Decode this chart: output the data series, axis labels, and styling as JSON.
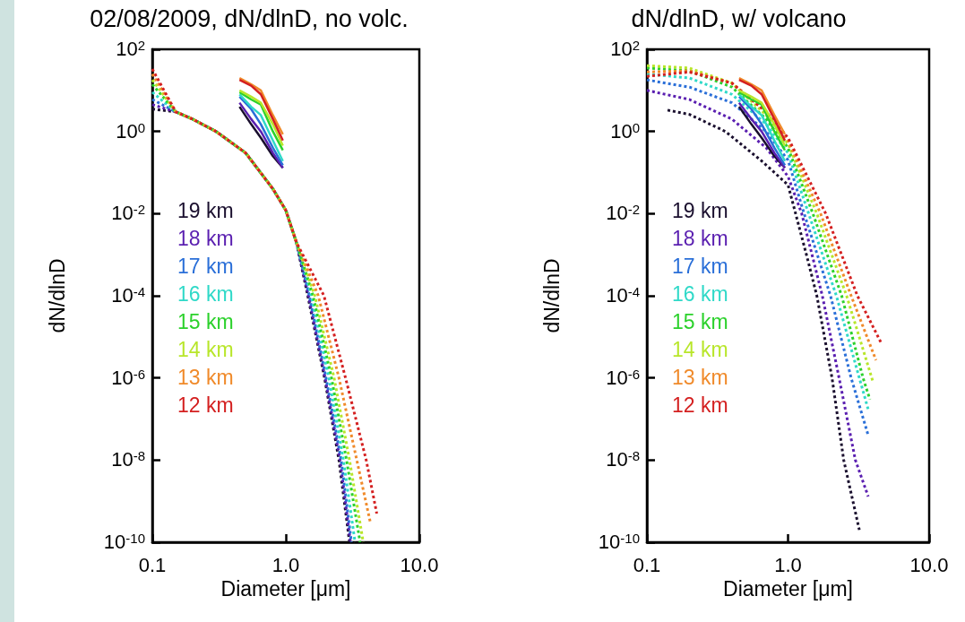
{
  "chart_data": [
    {
      "type": "line",
      "title": "02/08/2009, dN/dlnD, no volc.",
      "xlabel": "Diameter [μm]",
      "ylabel": "dN/dlnD",
      "log": "xy",
      "grid": false,
      "legend": "left",
      "marker": "none",
      "xlim": [
        0.1,
        10
      ],
      "xticks": [
        {
          "value": 0.1,
          "label": "0.1"
        },
        {
          "value": 1,
          "label": "1.0"
        },
        {
          "value": 10,
          "label": "10.0"
        }
      ],
      "ylim": [
        1e-10,
        100
      ],
      "yticks": [
        {
          "value": 100,
          "label": "10$^{2}$"
        },
        {
          "value": 1,
          "label": "10$^{0}$"
        },
        {
          "value": 0.01,
          "label": "10$^{-2}$"
        },
        {
          "value": 0.0001,
          "label": "10$^{-4}$"
        },
        {
          "value": 1e-06,
          "label": "10$^{-6}$"
        },
        {
          "value": 1e-08,
          "label": "10$^{-8}$"
        },
        {
          "value": 1e-10,
          "label": "10$^{-10}$"
        }
      ],
      "series": [
        {
          "name": "19 km",
          "color": "#1a0f2e",
          "x": [
            0.45,
            0.55,
            0.65,
            0.8,
            0.95
          ],
          "values": [
            4,
            1.5,
            0.7,
            0.25,
            0.13
          ]
        },
        {
          "name": "18 km",
          "color": "#5a1fb0",
          "x": [
            0.45,
            0.55,
            0.65,
            0.8,
            0.95
          ],
          "values": [
            5,
            2,
            1,
            0.3,
            0.13
          ]
        },
        {
          "name": "17 km",
          "color": "#2a6fd8",
          "x": [
            0.45,
            0.55,
            0.65,
            0.8,
            0.95
          ],
          "values": [
            7,
            3.5,
            1.5,
            0.4,
            0.15
          ]
        },
        {
          "name": "16 km",
          "color": "#2fd9c8",
          "x": [
            0.45,
            0.55,
            0.65,
            0.8,
            0.95
          ],
          "values": [
            8,
            4,
            2.5,
            0.6,
            0.19
          ]
        },
        {
          "name": "15 km",
          "color": "#2bd12b",
          "x": [
            0.45,
            0.55,
            0.65,
            0.8,
            0.95
          ],
          "values": [
            9,
            6,
            4.5,
            1,
            0.35
          ]
        },
        {
          "name": "14 km",
          "color": "#b8e62a",
          "x": [
            0.45,
            0.55,
            0.65,
            0.8,
            0.95
          ],
          "values": [
            10,
            7,
            5,
            1.5,
            0.45
          ]
        },
        {
          "name": "13 km",
          "color": "#f08a2a",
          "x": [
            0.45,
            0.55,
            0.65,
            0.8,
            0.95
          ],
          "values": [
            20,
            14,
            10,
            2.5,
            0.85
          ]
        },
        {
          "name": "12 km",
          "color": "#d42020",
          "x": [
            0.45,
            0.55,
            0.65,
            0.8,
            0.95
          ],
          "values": [
            18,
            13,
            8,
            2,
            0.6
          ]
        },
        {
          "color": "#1a0f2e",
          "line_style": "dotted",
          "x": [
            0.1,
            0.15,
            0.2,
            0.3,
            0.5,
            0.8,
            1.0,
            1.2,
            1.46,
            1.95,
            2.5,
            3.0
          ],
          "values": [
            3.5,
            3,
            2,
            1,
            0.3,
            0.04,
            0.012,
            0.002,
            0.0001,
            1e-06,
            1e-08,
            1e-10
          ]
        },
        {
          "color": "#5a1fb0",
          "line_style": "dotted",
          "x": [
            0.1,
            0.15,
            0.2,
            0.3,
            0.5,
            0.8,
            1.0,
            1.2,
            1.48,
            1.97,
            2.55,
            3.05
          ],
          "values": [
            4.5,
            3,
            2,
            1,
            0.3,
            0.04,
            0.012,
            0.002,
            0.0001,
            1e-06,
            1e-08,
            1e-10
          ]
        },
        {
          "color": "#2a6fd8",
          "line_style": "dotted",
          "x": [
            0.1,
            0.15,
            0.2,
            0.3,
            0.5,
            0.8,
            1.0,
            1.2,
            1.5,
            2.0,
            2.6,
            3.1
          ],
          "values": [
            6,
            3,
            2,
            1,
            0.3,
            0.04,
            0.012,
            0.002,
            0.0001,
            1e-06,
            1e-08,
            1e-10
          ]
        },
        {
          "color": "#2fd9c8",
          "line_style": "dotted",
          "x": [
            0.1,
            0.15,
            0.2,
            0.3,
            0.5,
            0.8,
            1.0,
            1.2,
            1.55,
            2.1,
            2.7,
            3.3
          ],
          "values": [
            9,
            3,
            2,
            1,
            0.3,
            0.04,
            0.012,
            0.002,
            0.0001,
            1e-06,
            1e-08,
            1e-10
          ]
        },
        {
          "color": "#2bd12b",
          "line_style": "dotted",
          "x": [
            0.1,
            0.15,
            0.2,
            0.3,
            0.5,
            0.8,
            1.0,
            1.2,
            1.6,
            2.2,
            2.85,
            3.6
          ],
          "values": [
            14,
            3,
            2,
            1,
            0.3,
            0.04,
            0.012,
            0.002,
            0.0001,
            1e-06,
            1e-08,
            1e-10
          ]
        },
        {
          "color": "#b8e62a",
          "line_style": "dotted",
          "x": [
            0.1,
            0.15,
            0.2,
            0.3,
            0.5,
            0.8,
            1.0,
            1.2,
            1.65,
            2.3,
            3.0,
            3.8
          ],
          "values": [
            18,
            3,
            2,
            1,
            0.3,
            0.04,
            0.012,
            0.002,
            0.0001,
            1e-06,
            1e-08,
            1e-10
          ]
        },
        {
          "color": "#f08a2a",
          "line_style": "dotted",
          "x": [
            0.1,
            0.15,
            0.2,
            0.3,
            0.5,
            0.8,
            1.0,
            1.2,
            1.75,
            2.5,
            3.4,
            4.3
          ],
          "values": [
            25,
            3,
            2,
            1,
            0.3,
            0.04,
            0.012,
            0.002,
            0.0001,
            1e-06,
            1e-08,
            3e-10
          ]
        },
        {
          "color": "#d42020",
          "line_style": "dotted",
          "x": [
            0.1,
            0.15,
            0.2,
            0.3,
            0.5,
            0.8,
            1.0,
            1.2,
            1.93,
            2.8,
            4.0,
            4.8
          ],
          "values": [
            33,
            3,
            2,
            1,
            0.3,
            0.04,
            0.012,
            0.002,
            0.0001,
            1e-06,
            1e-08,
            5e-10
          ]
        }
      ]
    },
    {
      "type": "line",
      "title": "dN/dlnD, w/ volcano",
      "xlabel": "Diameter [μm]",
      "ylabel": "dN/dlnD",
      "log": "xy",
      "grid": false,
      "legend": "left",
      "marker": "none",
      "xlim": [
        0.1,
        10
      ],
      "xticks": [
        {
          "value": 0.1,
          "label": "0.1"
        },
        {
          "value": 1,
          "label": "1.0"
        },
        {
          "value": 10,
          "label": "10.0"
        }
      ],
      "ylim": [
        1e-10,
        100
      ],
      "yticks": [
        {
          "value": 100,
          "label": "10$^{2}$"
        },
        {
          "value": 1,
          "label": "10$^{0}$"
        },
        {
          "value": 0.01,
          "label": "10$^{-2}$"
        },
        {
          "value": 0.0001,
          "label": "10$^{-4}$"
        },
        {
          "value": 1e-06,
          "label": "10$^{-6}$"
        },
        {
          "value": 1e-08,
          "label": "10$^{-8}$"
        },
        {
          "value": 1e-10,
          "label": "10$^{-10}$"
        }
      ],
      "series": [
        {
          "name": "19 km",
          "color": "#1a0f2e",
          "x": [
            0.45,
            0.55,
            0.65,
            0.8,
            0.95
          ],
          "values": [
            4,
            1.5,
            0.7,
            0.25,
            0.13
          ]
        },
        {
          "name": "18 km",
          "color": "#5a1fb0",
          "x": [
            0.45,
            0.55,
            0.65,
            0.8,
            0.95
          ],
          "values": [
            5,
            2,
            1,
            0.3,
            0.13
          ]
        },
        {
          "name": "17 km",
          "color": "#2a6fd8",
          "x": [
            0.45,
            0.55,
            0.65,
            0.8,
            0.95
          ],
          "values": [
            7,
            3.5,
            1.5,
            0.4,
            0.15
          ]
        },
        {
          "name": "16 km",
          "color": "#2fd9c8",
          "x": [
            0.45,
            0.55,
            0.65,
            0.8,
            0.95
          ],
          "values": [
            8,
            4,
            2.5,
            0.6,
            0.19
          ]
        },
        {
          "name": "15 km",
          "color": "#2bd12b",
          "x": [
            0.45,
            0.55,
            0.65,
            0.8,
            0.95
          ],
          "values": [
            9,
            6,
            4.5,
            1,
            0.35
          ]
        },
        {
          "name": "14 km",
          "color": "#b8e62a",
          "x": [
            0.45,
            0.55,
            0.65,
            0.8,
            0.95
          ],
          "values": [
            10,
            7,
            5,
            1.5,
            0.45
          ]
        },
        {
          "name": "13 km",
          "color": "#f08a2a",
          "x": [
            0.45,
            0.55,
            0.65,
            0.8,
            0.95
          ],
          "values": [
            20,
            14,
            10,
            2.5,
            0.85
          ]
        },
        {
          "name": "12 km",
          "color": "#d42020",
          "x": [
            0.45,
            0.55,
            0.65,
            0.8,
            0.95
          ],
          "values": [
            18,
            13,
            8,
            2,
            0.6
          ]
        },
        {
          "color": "#1a0f2e",
          "line_style": "dotted",
          "x": [
            0.14,
            0.2,
            0.36,
            0.64,
            1.0,
            1.35,
            1.6,
            2.05,
            2.48,
            3.2
          ],
          "values": [
            3.3,
            2.6,
            1,
            0.2,
            0.05,
            0.001,
            0.0001,
            1e-06,
            1e-08,
            2e-10
          ]
        },
        {
          "color": "#5a1fb0",
          "line_style": "dotted",
          "x": [
            0.1,
            0.2,
            0.4,
            0.7,
            1.0,
            1.25,
            1.75,
            2.3,
            3.0,
            3.7
          ],
          "values": [
            10,
            6,
            2,
            0.4,
            0.08,
            0.01,
            0.0001,
            1e-06,
            1e-08,
            1.3e-09
          ]
        },
        {
          "color": "#2a6fd8",
          "line_style": "dotted",
          "x": [
            0.1,
            0.2,
            0.4,
            0.7,
            1.0,
            1.3,
            2.0,
            2.8,
            3.7
          ],
          "values": [
            18,
            12,
            5,
            1,
            0.2,
            0.01,
            0.0001,
            1e-06,
            4e-08
          ]
        },
        {
          "color": "#2fd9c8",
          "line_style": "dotted",
          "x": [
            0.1,
            0.2,
            0.4,
            0.7,
            1.0,
            1.4,
            2.2,
            3.2,
            3.7
          ],
          "values": [
            25,
            20,
            8,
            1.5,
            0.3,
            0.01,
            0.0001,
            1e-06,
            1.7e-07
          ]
        },
        {
          "color": "#2bd12b",
          "line_style": "dotted",
          "x": [
            0.1,
            0.2,
            0.4,
            0.7,
            1.0,
            1.5,
            2.4,
            3.4,
            3.8
          ],
          "values": [
            35,
            30,
            12,
            2,
            0.4,
            0.01,
            0.0001,
            1e-06,
            3e-07
          ]
        },
        {
          "color": "#b8e62a",
          "line_style": "dotted",
          "x": [
            0.1,
            0.2,
            0.4,
            0.7,
            1.0,
            1.6,
            2.6,
            4.0
          ],
          "values": [
            40,
            35,
            15,
            2.5,
            0.5,
            0.01,
            0.0001,
            8e-07
          ]
        },
        {
          "color": "#f08a2a",
          "line_style": "dotted",
          "x": [
            0.1,
            0.2,
            0.4,
            0.7,
            1.0,
            1.7,
            2.8,
            4.2
          ],
          "values": [
            28,
            30,
            15,
            3,
            0.6,
            0.01,
            0.0001,
            2.7e-06
          ]
        },
        {
          "color": "#d42020",
          "line_style": "dotted",
          "x": [
            0.1,
            0.2,
            0.4,
            0.7,
            1.0,
            1.85,
            3.1,
            4.6
          ],
          "values": [
            22,
            28,
            15,
            3,
            0.7,
            0.01,
            0.0001,
            6.8e-06
          ]
        }
      ]
    }
  ]
}
